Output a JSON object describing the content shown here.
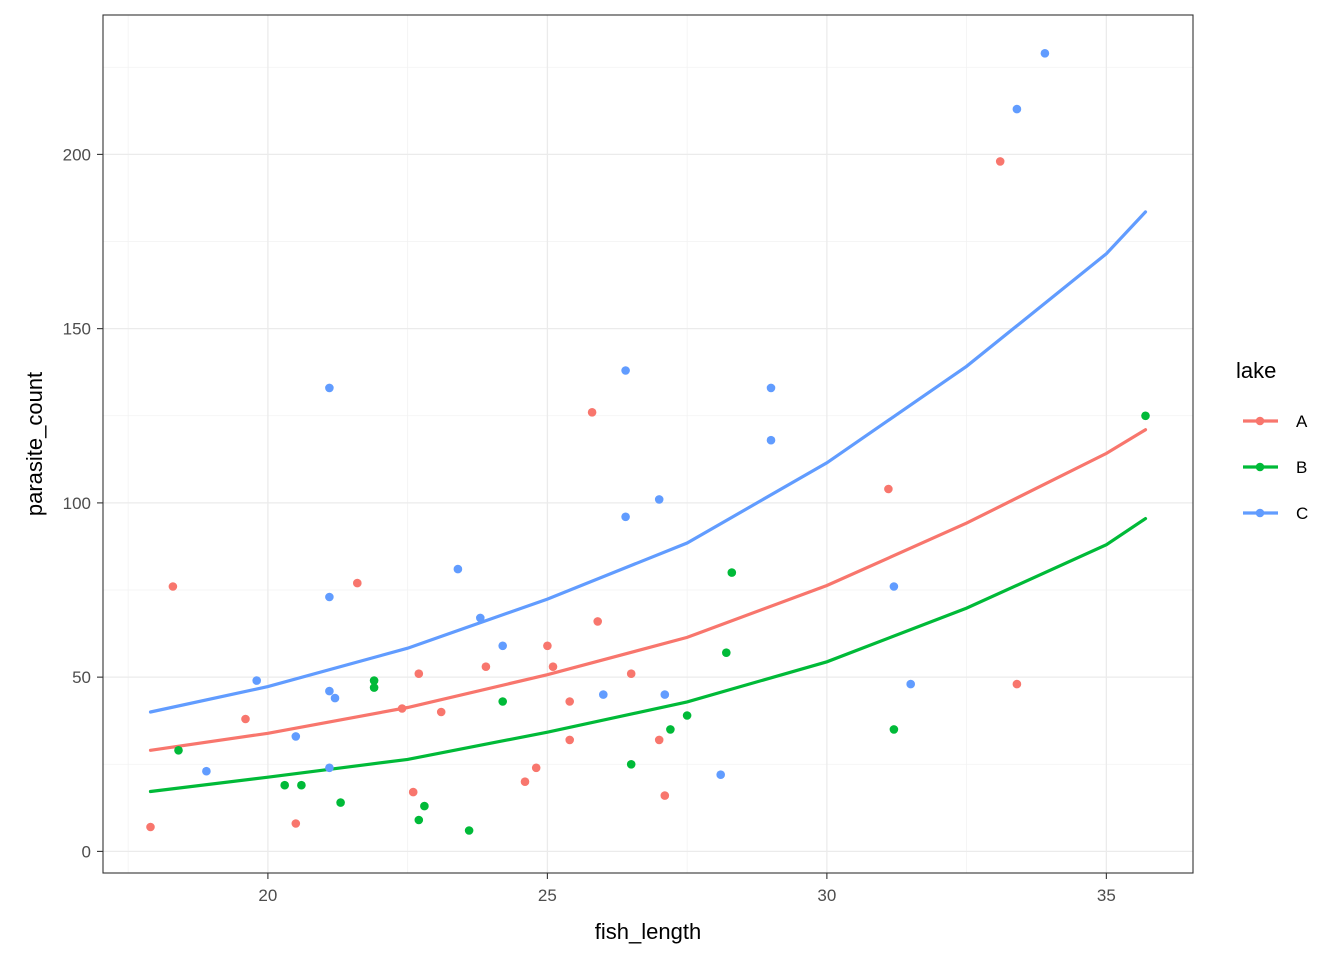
{
  "chart_data": {
    "type": "scatter",
    "xlabel": "fish_length",
    "ylabel": "parasite_count",
    "xlim": [
      17.05,
      36.55
    ],
    "ylim": [
      -6.2,
      240
    ],
    "x_ticks": [
      20,
      25,
      30,
      35
    ],
    "y_ticks": [
      0,
      50,
      100,
      150,
      200
    ],
    "x_minor_ticks": [
      17.5,
      22.5,
      27.5,
      32.5
    ],
    "y_minor_ticks": [
      25,
      75,
      125,
      175,
      225
    ],
    "grid": true,
    "legend": {
      "title": "lake",
      "position": "right"
    },
    "series": [
      {
        "name": "A",
        "color": "#F8766D",
        "points": [
          [
            17.9,
            7
          ],
          [
            18.3,
            76
          ],
          [
            19.6,
            38
          ],
          [
            20.5,
            8
          ],
          [
            21.6,
            77
          ],
          [
            22.4,
            41
          ],
          [
            22.6,
            17
          ],
          [
            22.7,
            51
          ],
          [
            23.1,
            40
          ],
          [
            23.9,
            53
          ],
          [
            24.6,
            20
          ],
          [
            24.8,
            24
          ],
          [
            25.0,
            59
          ],
          [
            25.1,
            53
          ],
          [
            25.4,
            43
          ],
          [
            25.4,
            32
          ],
          [
            25.8,
            126
          ],
          [
            25.9,
            66
          ],
          [
            26.5,
            51
          ],
          [
            27.0,
            32
          ],
          [
            27.1,
            16
          ],
          [
            31.1,
            104
          ],
          [
            33.1,
            198
          ],
          [
            33.4,
            48
          ]
        ],
        "fit": [
          [
            17.9,
            29
          ],
          [
            20,
            33.9
          ],
          [
            22.5,
            41.3
          ],
          [
            25,
            50.7
          ],
          [
            27.5,
            61.4
          ],
          [
            30,
            76.3
          ],
          [
            32.5,
            94.2
          ],
          [
            35,
            114.2
          ],
          [
            35.7,
            121
          ]
        ]
      },
      {
        "name": "B",
        "color": "#00BA38",
        "points": [
          [
            18.4,
            29
          ],
          [
            20.3,
            19
          ],
          [
            20.6,
            19
          ],
          [
            21.3,
            14
          ],
          [
            21.9,
            47
          ],
          [
            21.9,
            49
          ],
          [
            22.7,
            9
          ],
          [
            22.8,
            13
          ],
          [
            23.6,
            6
          ],
          [
            24.2,
            43
          ],
          [
            26.5,
            25
          ],
          [
            27.2,
            35
          ],
          [
            27.5,
            39
          ],
          [
            28.2,
            57
          ],
          [
            28.3,
            80
          ],
          [
            31.2,
            35
          ],
          [
            35.7,
            125
          ]
        ],
        "fit": [
          [
            17.9,
            17.2
          ],
          [
            20,
            21.3
          ],
          [
            22.5,
            26.4
          ],
          [
            25,
            34.2
          ],
          [
            27.5,
            42.9
          ],
          [
            30,
            54.4
          ],
          [
            32.5,
            69.8
          ],
          [
            35,
            88
          ],
          [
            35.7,
            95.5
          ]
        ]
      },
      {
        "name": "C",
        "color": "#619CFF",
        "points": [
          [
            18.9,
            23
          ],
          [
            19.8,
            49
          ],
          [
            20.5,
            33
          ],
          [
            21.1,
            133
          ],
          [
            21.1,
            73
          ],
          [
            21.1,
            46
          ],
          [
            21.1,
            24
          ],
          [
            21.2,
            44
          ],
          [
            23.4,
            81
          ],
          [
            23.8,
            67
          ],
          [
            24.2,
            59
          ],
          [
            26.0,
            45
          ],
          [
            26.4,
            96
          ],
          [
            26.4,
            138
          ],
          [
            27.0,
            101
          ],
          [
            27.1,
            45
          ],
          [
            28.1,
            22
          ],
          [
            29.0,
            133
          ],
          [
            29.0,
            118
          ],
          [
            31.2,
            76
          ],
          [
            31.5,
            48
          ],
          [
            33.4,
            213
          ],
          [
            33.9,
            229
          ]
        ],
        "fit": [
          [
            17.9,
            40
          ],
          [
            20,
            47.3
          ],
          [
            22.5,
            58.3
          ],
          [
            25,
            72.4
          ],
          [
            27.5,
            88.5
          ],
          [
            30,
            111.5
          ],
          [
            32.5,
            139.2
          ],
          [
            35,
            171.5
          ],
          [
            35.7,
            183.5
          ]
        ]
      }
    ]
  }
}
